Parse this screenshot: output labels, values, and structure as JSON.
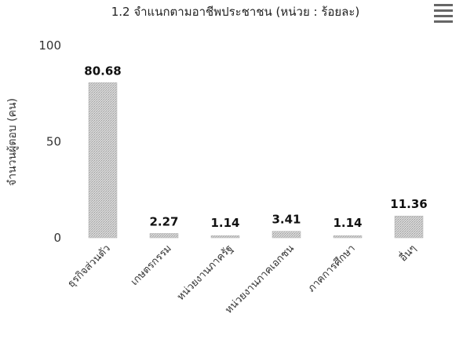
{
  "chart_data": {
    "type": "bar",
    "title": "1.2 จำแนกตามอาชีพประชาชน (หน่วย : ร้อยละ)",
    "ylabel": "จำนวนผู้ตอบ (คน)",
    "xlabel": "",
    "ylim": [
      0,
      100
    ],
    "yticks": [
      "0",
      "50",
      "100"
    ],
    "grid": false,
    "categories": [
      "ธุรกิจส่วนตัว",
      "เกษตรกรรม",
      "หน่วยงานภาครัฐ",
      "หน่วยงานภาคเอกชน",
      "ภาคการศึกษา",
      "อื่นๆ"
    ],
    "values": [
      80.68,
      2.27,
      1.14,
      3.41,
      1.14,
      11.36
    ],
    "value_labels": [
      "80.68",
      "2.27",
      "1.14",
      "3.41",
      "1.14",
      "11.36"
    ],
    "bar_color": "#c8c8c8"
  },
  "menu_icon": "hamburger-menu-icon"
}
